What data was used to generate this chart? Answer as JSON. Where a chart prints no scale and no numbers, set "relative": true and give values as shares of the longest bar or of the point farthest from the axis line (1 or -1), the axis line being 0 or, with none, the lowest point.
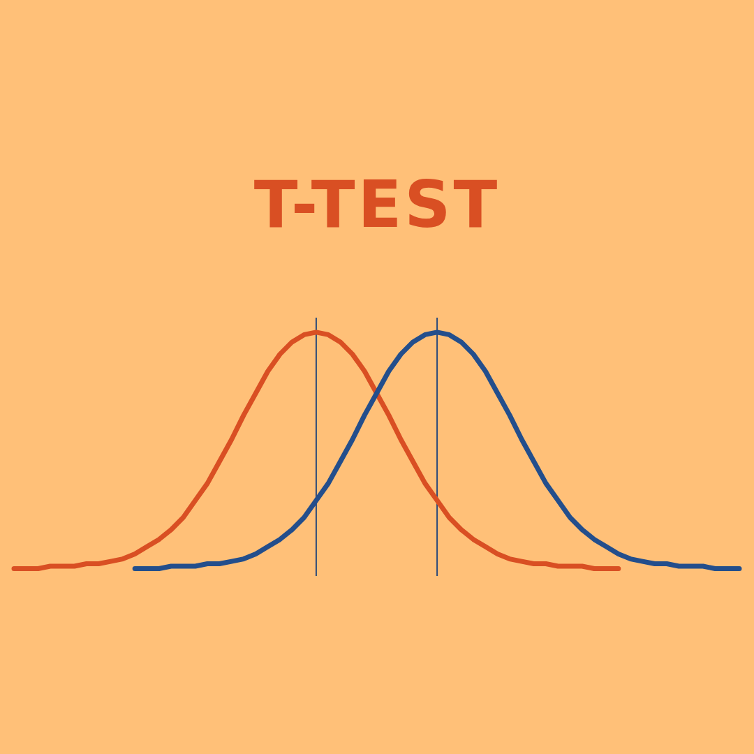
{
  "chart_data": {
    "type": "line",
    "title": "T-TEST",
    "relative": true,
    "marker": "none",
    "line_style": "solid",
    "categories": [
      null,
      null,
      null,
      null,
      null,
      null,
      null,
      null,
      null,
      null,
      null,
      null,
      null,
      null,
      null,
      null,
      null,
      null,
      null,
      null,
      null,
      null,
      null,
      null,
      null,
      null,
      null,
      null,
      null,
      null,
      null,
      null,
      null,
      null,
      null,
      null,
      null,
      null,
      null,
      null,
      null,
      null,
      null,
      null,
      null,
      null,
      null,
      null,
      null,
      null,
      null,
      null,
      null,
      null,
      null,
      null,
      null,
      null,
      null,
      null,
      null
    ],
    "series": [
      {
        "color": "#d94f23",
        "values": [
          0.03,
          0.03,
          0.03,
          0.04,
          0.04,
          0.04,
          0.05,
          0.05,
          0.06,
          0.07,
          0.09,
          0.12,
          0.15,
          0.19,
          0.24,
          0.31,
          0.38,
          0.47,
          0.56,
          0.66,
          0.75,
          0.84,
          0.91,
          0.96,
          0.99,
          1,
          0.99,
          0.96,
          0.91,
          0.84,
          0.75,
          0.66,
          0.56,
          0.47,
          0.38,
          0.31,
          0.24,
          0.19,
          0.15,
          0.12,
          0.09,
          0.07,
          0.06,
          0.05,
          0.05,
          0.04,
          0.04,
          0.04,
          0.03,
          0.03,
          0.03,
          null,
          null,
          null,
          null,
          null,
          null,
          null,
          null,
          null,
          null
        ]
      },
      {
        "color": "#234e8c",
        "values": [
          null,
          null,
          null,
          null,
          null,
          null,
          null,
          null,
          null,
          null,
          0.03,
          0.03,
          0.03,
          0.04,
          0.04,
          0.04,
          0.05,
          0.05,
          0.06,
          0.07,
          0.09,
          0.12,
          0.15,
          0.19,
          0.24,
          0.31,
          0.38,
          0.47,
          0.56,
          0.66,
          0.75,
          0.84,
          0.91,
          0.96,
          0.99,
          1,
          0.99,
          0.96,
          0.91,
          0.84,
          0.75,
          0.66,
          0.56,
          0.47,
          0.38,
          0.31,
          0.24,
          0.19,
          0.15,
          0.12,
          0.09,
          0.07,
          0.06,
          0.05,
          0.05,
          0.04,
          0.04,
          0.04,
          0.03,
          0.03,
          0.03
        ]
      }
    ]
  }
}
